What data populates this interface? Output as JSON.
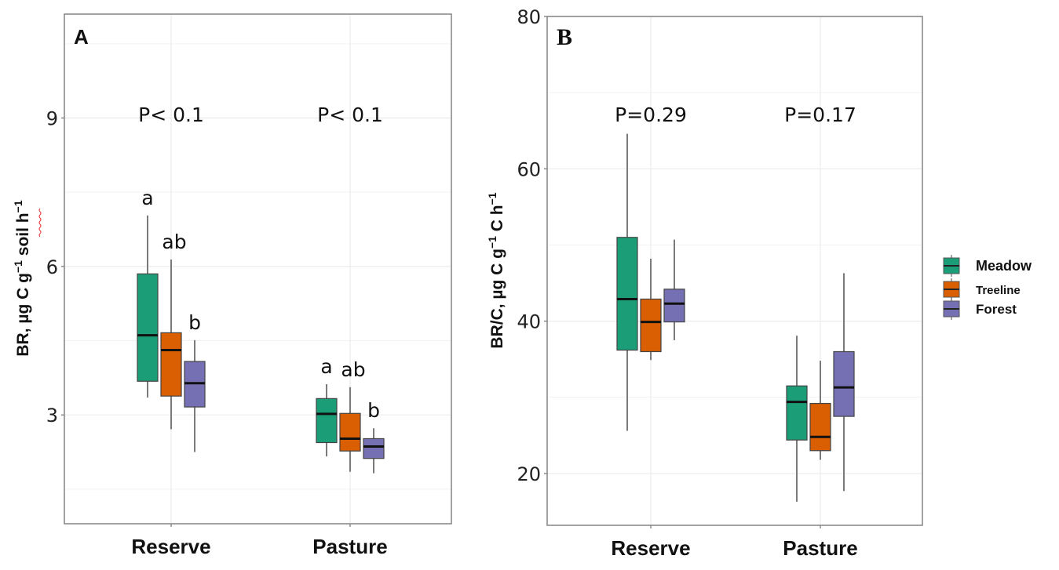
{
  "legend": {
    "items": [
      {
        "label": "Meadow",
        "color": "#1b9e77"
      },
      {
        "label": "Treeline",
        "color": "#d95f02"
      },
      {
        "label": "Forest",
        "color": "#7570b3"
      }
    ]
  },
  "chart_data": [
    {
      "type": "boxplot",
      "panel_label": "A",
      "title": "",
      "xlabel": "",
      "ylabel": "BR, µg C g⁻¹ soil h⁻¹",
      "ylim": [
        0.8,
        11.1
      ],
      "yticks": [
        3,
        6,
        9
      ],
      "minor_gridlines": [
        1.5,
        4.5,
        7.5,
        10.5
      ],
      "grid": true,
      "categories": [
        "Reserve",
        "Pasture"
      ],
      "annotations": [
        {
          "category": "Reserve",
          "text": "P< 0.1"
        },
        {
          "category": "Pasture",
          "text": "P< 0.1"
        }
      ],
      "series": [
        {
          "name": "Meadow",
          "letters": [
            "a",
            "a"
          ],
          "boxes": [
            {
              "whisker_low": 3.35,
              "q1": 3.68,
              "median": 4.61,
              "q3": 5.85,
              "whisker_high": 7.03
            },
            {
              "whisker_low": 2.16,
              "q1": 2.44,
              "median": 3.02,
              "q3": 3.33,
              "whisker_high": 3.62
            }
          ]
        },
        {
          "name": "Treeline",
          "letters": [
            "ab",
            "ab"
          ],
          "boxes": [
            {
              "whisker_low": 2.71,
              "q1": 3.38,
              "median": 4.31,
              "q3": 4.66,
              "whisker_high": 6.14
            },
            {
              "whisker_low": 1.85,
              "q1": 2.27,
              "median": 2.52,
              "q3": 3.03,
              "whisker_high": 3.56
            }
          ]
        },
        {
          "name": "Forest",
          "letters": [
            "b",
            "b"
          ],
          "boxes": [
            {
              "whisker_low": 2.25,
              "q1": 3.16,
              "median": 3.64,
              "q3": 4.08,
              "whisker_high": 4.51
            },
            {
              "whisker_low": 1.82,
              "q1": 2.12,
              "median": 2.36,
              "q3": 2.52,
              "whisker_high": 2.73
            }
          ]
        }
      ]
    },
    {
      "type": "boxplot",
      "panel_label": "B",
      "title": "",
      "xlabel": "",
      "ylabel": "BR/C, µg C g⁻¹ C h⁻¹",
      "ylim": [
        13.2,
        80
      ],
      "yticks": [
        20,
        40,
        60,
        80
      ],
      "minor_gridlines": [
        30,
        50,
        70
      ],
      "grid": true,
      "categories": [
        "Reserve",
        "Pasture"
      ],
      "annotations": [
        {
          "category": "Reserve",
          "text": "P=0.29"
        },
        {
          "category": "Pasture",
          "text": "P=0.17"
        }
      ],
      "series": [
        {
          "name": "Meadow",
          "letters": [
            "",
            ""
          ],
          "boxes": [
            {
              "whisker_low": 25.6,
              "q1": 36.2,
              "median": 42.9,
              "q3": 51.0,
              "whisker_high": 64.6
            },
            {
              "whisker_low": 16.3,
              "q1": 24.4,
              "median": 29.4,
              "q3": 31.5,
              "whisker_high": 38.1
            }
          ]
        },
        {
          "name": "Treeline",
          "letters": [
            "",
            ""
          ],
          "boxes": [
            {
              "whisker_low": 34.9,
              "q1": 36.0,
              "median": 39.9,
              "q3": 42.9,
              "whisker_high": 48.2
            },
            {
              "whisker_low": 21.8,
              "q1": 23.0,
              "median": 24.8,
              "q3": 29.2,
              "whisker_high": 34.8
            }
          ]
        },
        {
          "name": "Forest",
          "letters": [
            "",
            ""
          ],
          "boxes": [
            {
              "whisker_low": 37.5,
              "q1": 39.9,
              "median": 42.3,
              "q3": 44.2,
              "whisker_high": 50.7
            },
            {
              "whisker_low": 17.7,
              "q1": 27.5,
              "median": 31.3,
              "q3": 36.0,
              "whisker_high": 46.3
            }
          ]
        }
      ]
    }
  ]
}
